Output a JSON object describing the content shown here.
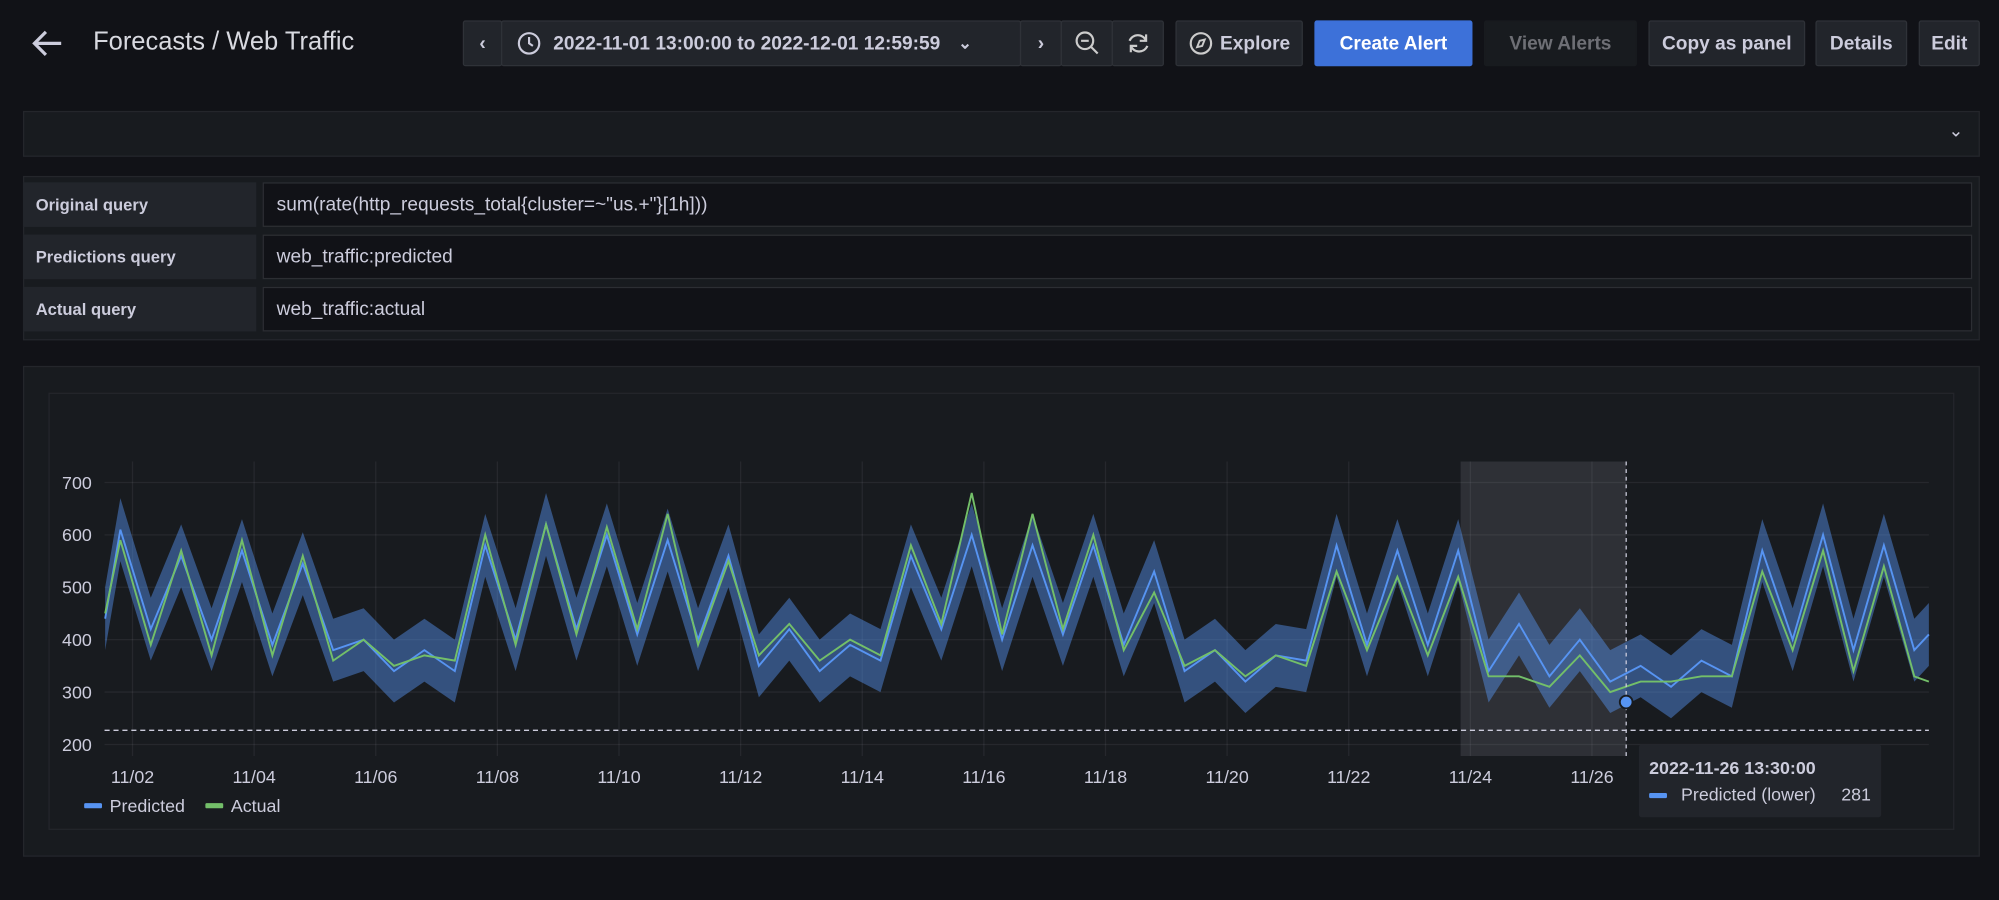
{
  "header": {
    "title": "Forecasts / Web Traffic",
    "time_range": "2022-11-01 13:00:00 to 2022-12-01 12:59:59",
    "buttons": [
      "Explore",
      "Create Alert",
      "View Alerts",
      "Copy as panel",
      "Details",
      "Edit"
    ]
  },
  "queries": {
    "rows": [
      [
        "Original query",
        "sum(rate(http_requests_total{cluster=~\"us.+\"}[1h]))"
      ],
      [
        "Predictions query",
        "web_traffic:predicted"
      ],
      [
        "Actual query",
        "web_traffic:actual"
      ]
    ]
  },
  "chart_data": {
    "type": "line",
    "x": [
      1.55,
      1.8,
      2.3,
      2.8,
      3.3,
      3.8,
      4.3,
      4.8,
      5.3,
      5.8,
      6.3,
      6.8,
      7.3,
      7.8,
      8.3,
      8.8,
      9.3,
      9.8,
      10.3,
      10.8,
      11.3,
      11.8,
      12.3,
      12.8,
      13.3,
      13.8,
      14.3,
      14.8,
      15.3,
      15.8,
      16.3,
      16.8,
      17.3,
      17.8,
      18.3,
      18.8,
      19.3,
      19.8,
      20.3,
      20.8,
      21.3,
      21.8,
      22.3,
      22.8,
      23.3,
      23.8,
      24.3,
      24.8,
      25.3,
      25.8,
      26.3,
      26.8,
      27.3,
      27.8,
      28.3,
      28.8,
      29.3,
      29.8,
      30.3,
      30.8,
      31.3,
      31.54
    ],
    "series": [
      {
        "name": "Predicted",
        "color": "#5794f2",
        "values": [
          440,
          610,
          420,
          560,
          400,
          570,
          390,
          545,
          380,
          400,
          340,
          380,
          340,
          580,
          400,
          620,
          420,
          600,
          410,
          590,
          400,
          560,
          350,
          420,
          340,
          390,
          360,
          560,
          420,
          600,
          400,
          580,
          410,
          580,
          390,
          530,
          340,
          380,
          320,
          370,
          360,
          580,
          390,
          570,
          390,
          570,
          340,
          430,
          330,
          400,
          320,
          350,
          310,
          360,
          330,
          570,
          400,
          600,
          380,
          580,
          380,
          410
        ],
        "lower": [
          380,
          550,
          360,
          500,
          340,
          510,
          330,
          485,
          320,
          340,
          280,
          320,
          280,
          520,
          340,
          560,
          360,
          540,
          350,
          530,
          340,
          500,
          290,
          360,
          280,
          330,
          300,
          500,
          360,
          540,
          340,
          520,
          350,
          520,
          330,
          470,
          280,
          320,
          260,
          310,
          300,
          520,
          330,
          510,
          330,
          510,
          280,
          370,
          270,
          340,
          260,
          290,
          250,
          300,
          270,
          510,
          340,
          540,
          320,
          520,
          320,
          350
        ],
        "upper": [
          500,
          670,
          480,
          620,
          460,
          630,
          450,
          605,
          440,
          460,
          400,
          440,
          400,
          640,
          460,
          680,
          480,
          660,
          470,
          650,
          460,
          620,
          410,
          480,
          400,
          450,
          420,
          620,
          480,
          660,
          460,
          640,
          470,
          640,
          450,
          590,
          400,
          440,
          380,
          430,
          420,
          640,
          450,
          630,
          450,
          630,
          400,
          490,
          390,
          460,
          380,
          410,
          370,
          420,
          390,
          630,
          460,
          660,
          440,
          640,
          440,
          470
        ]
      },
      {
        "name": "Actual",
        "color": "#73bf69",
        "values": [
          450,
          590,
          390,
          570,
          370,
          590,
          370,
          560,
          360,
          400,
          350,
          370,
          360,
          600,
          390,
          620,
          410,
          615,
          420,
          640,
          390,
          550,
          370,
          430,
          360,
          400,
          370,
          580,
          430,
          680,
          410,
          640,
          420,
          600,
          380,
          490,
          350,
          380,
          330,
          370,
          350,
          530,
          380,
          520,
          370,
          520,
          330,
          330,
          310,
          370,
          300,
          320,
          320,
          330,
          330,
          530,
          380,
          570,
          340,
          540,
          330,
          320
        ]
      }
    ],
    "xlim": [
      1.54,
      31.54
    ],
    "xticks": [
      {
        "value": 2,
        "label": "11/02"
      },
      {
        "value": 4,
        "label": "11/04"
      },
      {
        "value": 6,
        "label": "11/06"
      },
      {
        "value": 8,
        "label": "11/08"
      },
      {
        "value": 10,
        "label": "11/10"
      },
      {
        "value": 12,
        "label": "11/12"
      },
      {
        "value": 14,
        "label": "11/14"
      },
      {
        "value": 16,
        "label": "11/16"
      },
      {
        "value": 18,
        "label": "11/18"
      },
      {
        "value": 20,
        "label": "11/20"
      },
      {
        "value": 22,
        "label": "11/22"
      },
      {
        "value": 24,
        "label": "11/24"
      },
      {
        "value": 26,
        "label": "11/26"
      }
    ],
    "ylim": [
      178,
      740
    ],
    "yticks": [
      200,
      300,
      400,
      500,
      600,
      700
    ],
    "grid": true,
    "threshold": 227,
    "highlight": [
      23.84,
      26.5625
    ],
    "legend": "bottom-left",
    "tooltip": {
      "x": 26.5625,
      "time": "2022-11-26 13:30:00",
      "series": "Predicted (lower)",
      "value": 281
    }
  }
}
